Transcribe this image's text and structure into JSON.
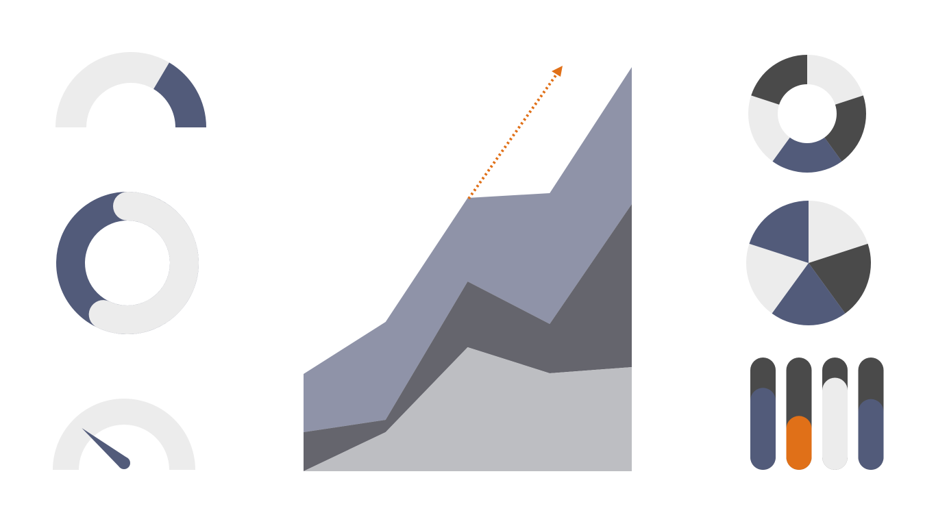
{
  "colors": {
    "navy": "#525b7a",
    "slate": "#8f93a8",
    "dark": "#65656d",
    "charcoal": "#4a4a4a",
    "silver": "#bdbec2",
    "light": "#ececec",
    "accent": "#e07018"
  },
  "chart_data": [
    {
      "type": "area",
      "stacked": true,
      "x": [
        1,
        2,
        3,
        4,
        5
      ],
      "series": [
        {
          "values": [
            0,
            57,
            181,
            143,
            152
          ],
          "color": "#bdbec2"
        },
        {
          "values": [
            57,
            18,
            96,
            72,
            238
          ],
          "color": "#65656d"
        },
        {
          "values": [
            85,
            143,
            122,
            191,
            200
          ],
          "color": "#8f93a8"
        }
      ],
      "ylim": [
        0,
        592
      ],
      "grid": false,
      "trend_arrow": {
        "style": "dotted",
        "color": "#e07018",
        "direction": "up-right"
      }
    },
    {
      "type": "gauge-semicircle",
      "value": 0.33,
      "fill_color": "#525b7a",
      "track_color": "#ececec"
    },
    {
      "type": "progress-ring",
      "value": 0.43,
      "fill_color": "#525b7a",
      "track_color": "#ececec"
    },
    {
      "type": "speedometer",
      "value": 0.22,
      "needle_color": "#525b7a",
      "track_color": "#ececec"
    },
    {
      "type": "donut",
      "slices": [
        {
          "value": 20,
          "color": "#ececec"
        },
        {
          "value": 20,
          "color": "#4a4a4a"
        },
        {
          "value": 20,
          "color": "#525b7a"
        },
        {
          "value": 20,
          "color": "#ececec"
        },
        {
          "value": 20,
          "color": "#4a4a4a"
        }
      ]
    },
    {
      "type": "pie",
      "slices": [
        {
          "value": 20,
          "color": "#ececec"
        },
        {
          "value": 20,
          "color": "#4a4a4a"
        },
        {
          "value": 20,
          "color": "#525b7a"
        },
        {
          "value": 20,
          "color": "#ececec"
        },
        {
          "value": 20,
          "color": "#525b7a"
        }
      ]
    },
    {
      "type": "bar",
      "orientation": "vertical",
      "style": "pill",
      "ylim": [
        0,
        1
      ],
      "bars": [
        {
          "value": 0.73,
          "color": "#525b7a"
        },
        {
          "value": 0.48,
          "color": "#e07018"
        },
        {
          "value": 0.82,
          "color": "#ececec"
        },
        {
          "value": 0.63,
          "color": "#525b7a"
        }
      ],
      "track_color": "#4a4a4a"
    }
  ]
}
